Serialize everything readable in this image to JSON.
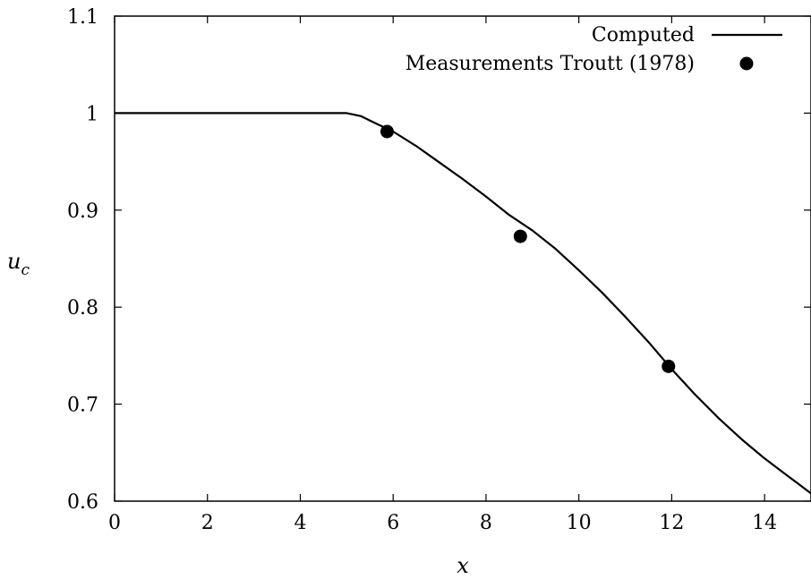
{
  "chart_data": {
    "type": "line",
    "title": "",
    "xlabel": "x",
    "ylabel": "u",
    "ylabel_subscript": "c",
    "xlim": [
      0,
      15
    ],
    "ylim": [
      0.6,
      1.1
    ],
    "x_ticks": [
      0,
      2,
      4,
      6,
      8,
      10,
      12,
      14
    ],
    "y_ticks": [
      0.6,
      0.7,
      0.8,
      0.9,
      1,
      1.1
    ],
    "y_tick_labels": [
      "0.6",
      "0.7",
      "0.8",
      "0.9",
      "1",
      "1.1"
    ],
    "grid": false,
    "legend_position": "top-right",
    "series": [
      {
        "name": "Computed",
        "style": "line",
        "color": "#000000",
        "x": [
          0,
          1,
          2,
          3,
          4,
          5,
          5.3,
          5.6,
          6,
          6.5,
          7,
          7.5,
          8,
          8.5,
          9,
          9.5,
          10,
          10.5,
          11,
          11.5,
          12,
          12.5,
          13,
          13.5,
          14,
          14.5,
          15
        ],
        "y": [
          1,
          1,
          1,
          1,
          1,
          1,
          0.997,
          0.99,
          0.981,
          0.966,
          0.949,
          0.932,
          0.914,
          0.895,
          0.879,
          0.86,
          0.838,
          0.815,
          0.79,
          0.764,
          0.736,
          0.71,
          0.686,
          0.664,
          0.644,
          0.626,
          0.608
        ]
      },
      {
        "name": "Measurements Troutt (1978)",
        "style": "points",
        "color": "#000000",
        "x": [
          5.87,
          8.74,
          11.93
        ],
        "y": [
          0.981,
          0.873,
          0.739
        ]
      }
    ]
  }
}
